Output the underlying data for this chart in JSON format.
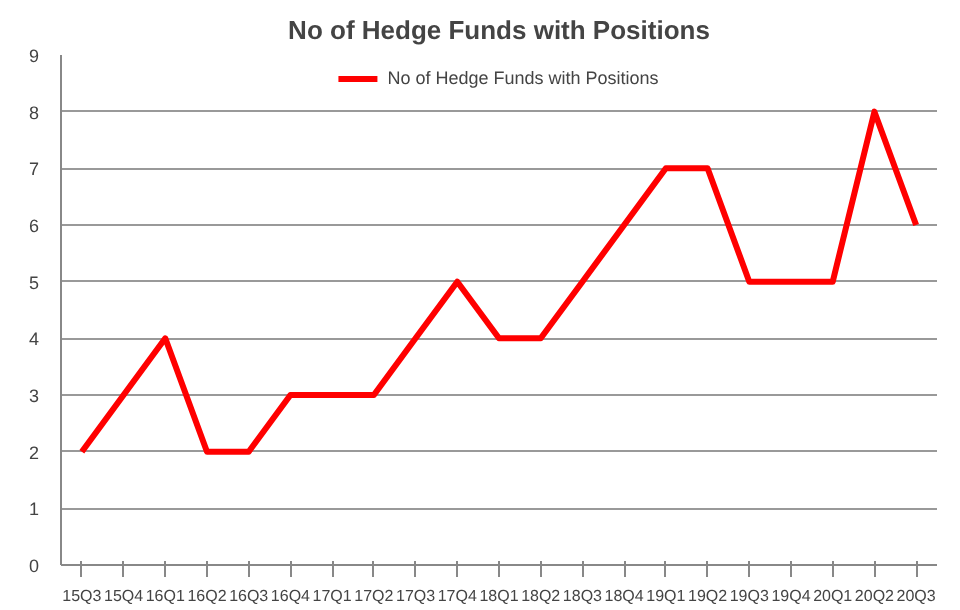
{
  "chart_data": {
    "type": "line",
    "title": "No of Hedge Funds with Positions",
    "categories": [
      "15Q3",
      "15Q4",
      "16Q1",
      "16Q2",
      "16Q3",
      "16Q4",
      "17Q1",
      "17Q2",
      "17Q3",
      "17Q4",
      "18Q1",
      "18Q2",
      "18Q3",
      "18Q4",
      "19Q1",
      "19Q2",
      "19Q3",
      "19Q4",
      "20Q1",
      "20Q2",
      "20Q3"
    ],
    "series": [
      {
        "name": "No of Hedge Funds with Positions",
        "color": "#ff0000",
        "values": [
          2,
          3,
          4,
          2,
          2,
          3,
          3,
          3,
          4,
          5,
          4,
          4,
          5,
          6,
          7,
          7,
          5,
          5,
          5,
          8,
          6
        ]
      }
    ],
    "ylim": [
      0,
      9
    ],
    "yticks": [
      0,
      1,
      2,
      3,
      4,
      5,
      6,
      7,
      8,
      9
    ],
    "grid": "y",
    "legend": "top",
    "marker": "none",
    "line_style": "solid"
  }
}
